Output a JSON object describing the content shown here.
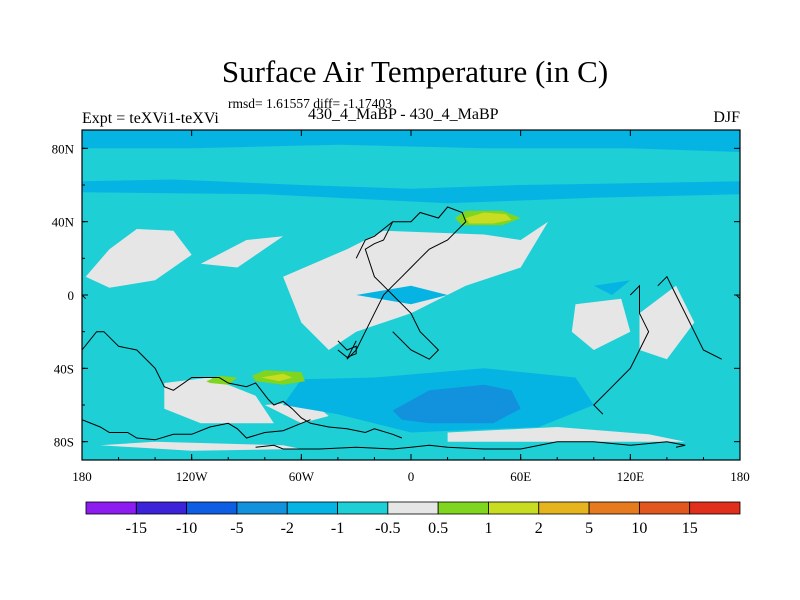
{
  "header": {
    "title": "Surface Air Temperature (in C)",
    "stats": "rmsd= 1.61557 diff= -1.17403",
    "experiment": "Expt = teXVi1-teXVi",
    "runs": "430_4_MaBP - 430_4_MaBP",
    "season": "DJF"
  },
  "chart_data": {
    "type": "heatmap",
    "title": "Surface Air Temperature (in C)",
    "subtitle": "430_4_MaBP - 430_4_MaBP",
    "xlim": [
      -180,
      180
    ],
    "ylim": [
      -90,
      90
    ],
    "x_ticks": [
      {
        "value": -180,
        "label": "180"
      },
      {
        "value": -120,
        "label": "120W"
      },
      {
        "value": -60,
        "label": "60W"
      },
      {
        "value": 0,
        "label": "0"
      },
      {
        "value": 60,
        "label": "60E"
      },
      {
        "value": 120,
        "label": "120E"
      },
      {
        "value": 180,
        "label": "180"
      }
    ],
    "y_ticks": [
      {
        "value": 80,
        "label": "80N"
      },
      {
        "value": 40,
        "label": "40N"
      },
      {
        "value": 0,
        "label": "0"
      },
      {
        "value": -40,
        "label": "40S"
      },
      {
        "value": -80,
        "label": "80S"
      }
    ],
    "colorbar": {
      "labels": [
        "-15",
        "-10",
        "-5",
        "-2",
        "-1",
        "-0.5",
        "0.5",
        "1",
        "2",
        "5",
        "10",
        "15"
      ],
      "colors": [
        "#8c1cf0",
        "#3c22d8",
        "#0d5ee2",
        "#1292dc",
        "#06b4e4",
        "#1ecfd6",
        "#e6e6e6",
        "#7fd51f",
        "#c8dc21",
        "#e6b41f",
        "#e67a1e",
        "#e2571d",
        "#e0301c"
      ]
    },
    "fields": [
      {
        "level": "-1 to -0.5",
        "color": "#1ecfd6",
        "regions": [
          [
            [
              -180,
              30
            ],
            [
              -160,
              35
            ],
            [
              -130,
              40
            ],
            [
              -100,
              30
            ],
            [
              -70,
              25
            ],
            [
              -40,
              20
            ],
            [
              -10,
              20
            ],
            [
              30,
              25
            ],
            [
              80,
              20
            ],
            [
              120,
              15
            ],
            [
              180,
              15
            ],
            [
              180,
              -25
            ],
            [
              150,
              -45
            ],
            [
              120,
              -40
            ],
            [
              100,
              -60
            ],
            [
              30,
              -78
            ],
            [
              -20,
              -70
            ],
            [
              -60,
              -50
            ],
            [
              -100,
              -35
            ],
            [
              -140,
              -20
            ],
            [
              -180,
              -15
            ]
          ],
          [
            [
              -180,
              -40
            ],
            [
              -150,
              -50
            ],
            [
              -110,
              -60
            ],
            [
              -80,
              -70
            ],
            [
              -120,
              -80
            ],
            [
              -180,
              -75
            ]
          ],
          [
            [
              -180,
              73
            ],
            [
              -140,
              75
            ],
            [
              -80,
              78
            ],
            [
              -20,
              75
            ],
            [
              40,
              74
            ],
            [
              100,
              73
            ],
            [
              180,
              74
            ],
            [
              180,
              72
            ],
            [
              -180,
              70
            ]
          ],
          [
            [
              20,
              44
            ],
            [
              60,
              48
            ],
            [
              100,
              42
            ],
            [
              60,
              36
            ],
            [
              20,
              38
            ]
          ]
        ]
      },
      {
        "level": "-0.5 to 0.5",
        "color": "#e6e6e6",
        "regions": [
          [
            [
              -178,
              10
            ],
            [
              -165,
              25
            ],
            [
              -150,
              36
            ],
            [
              -130,
              35
            ],
            [
              -120,
              22
            ],
            [
              -140,
              8
            ],
            [
              -165,
              4
            ]
          ],
          [
            [
              -115,
              17
            ],
            [
              -90,
              30
            ],
            [
              -70,
              32
            ],
            [
              -95,
              15
            ]
          ],
          [
            [
              -70,
              10
            ],
            [
              -35,
              25
            ],
            [
              -15,
              35
            ],
            [
              40,
              33
            ],
            [
              60,
              30
            ],
            [
              75,
              40
            ],
            [
              60,
              15
            ],
            [
              30,
              5
            ],
            [
              0,
              -10
            ],
            [
              -30,
              -20
            ],
            [
              -45,
              -30
            ],
            [
              -60,
              -15
            ]
          ],
          [
            [
              -135,
              -48
            ],
            [
              -110,
              -45
            ],
            [
              -85,
              -55
            ],
            [
              -75,
              -70
            ],
            [
              -115,
              -70
            ],
            [
              -135,
              -62
            ]
          ],
          [
            [
              -80,
              -60
            ],
            [
              -55,
              -58
            ],
            [
              -45,
              -66
            ],
            [
              -60,
              -70
            ]
          ],
          [
            [
              90,
              -5
            ],
            [
              115,
              -2
            ],
            [
              120,
              -20
            ],
            [
              100,
              -30
            ],
            [
              88,
              -20
            ]
          ],
          [
            [
              125,
              -10
            ],
            [
              145,
              5
            ],
            [
              155,
              -15
            ],
            [
              140,
              -35
            ],
            [
              125,
              -30
            ]
          ],
          [
            [
              20,
              -75
            ],
            [
              80,
              -72
            ],
            [
              130,
              -76
            ],
            [
              150,
              -80
            ],
            [
              20,
              -80
            ]
          ],
          [
            [
              -170,
              -82
            ],
            [
              -120,
              -85
            ],
            [
              -60,
              -84
            ],
            [
              -70,
              -82
            ],
            [
              -140,
              -80
            ]
          ]
        ]
      },
      {
        "level": "-2 to -1",
        "color": "#06b4e4",
        "regions": [
          [
            [
              -180,
              90
            ],
            [
              180,
              90
            ],
            [
              180,
              78
            ],
            [
              120,
              80
            ],
            [
              40,
              80
            ],
            [
              -40,
              82
            ],
            [
              -120,
              80
            ],
            [
              -180,
              80
            ]
          ],
          [
            [
              -180,
              62
            ],
            [
              -130,
              63
            ],
            [
              -60,
              60
            ],
            [
              0,
              58
            ],
            [
              60,
              60
            ],
            [
              120,
              61
            ],
            [
              180,
              62
            ],
            [
              180,
              55
            ],
            [
              100,
              53
            ],
            [
              20,
              50
            ],
            [
              -80,
              55
            ],
            [
              -180,
              56
            ]
          ],
          [
            [
              -60,
              -46
            ],
            [
              -20,
              -45
            ],
            [
              40,
              -40
            ],
            [
              90,
              -45
            ],
            [
              100,
              -60
            ],
            [
              70,
              -72
            ],
            [
              0,
              -75
            ],
            [
              -40,
              -65
            ],
            [
              -70,
              -60
            ]
          ],
          [
            [
              -30,
              0
            ],
            [
              0,
              -5
            ],
            [
              20,
              0
            ],
            [
              0,
              5
            ]
          ],
          [
            [
              100,
              5
            ],
            [
              120,
              8
            ],
            [
              110,
              0
            ]
          ]
        ]
      },
      {
        "level": "-5 to -2",
        "color": "#1292dc",
        "regions": [
          [
            [
              -10,
              -63
            ],
            [
              10,
              -52
            ],
            [
              40,
              -49
            ],
            [
              55,
              -52
            ],
            [
              60,
              -62
            ],
            [
              45,
              -70
            ],
            [
              10,
              -70
            ],
            [
              -5,
              -68
            ]
          ]
        ]
      },
      {
        "level": "1 to 2",
        "color": "#7fd51f",
        "regions": [
          [
            [
              -112,
              -47
            ],
            [
              -105,
              -44
            ],
            [
              -95,
              -45
            ],
            [
              -100,
              -49
            ],
            [
              -110,
              -48
            ]
          ],
          [
            [
              -87,
              -44
            ],
            [
              -80,
              -41
            ],
            [
              -60,
              -42
            ],
            [
              -58,
              -47
            ],
            [
              -70,
              -49
            ],
            [
              -85,
              -47
            ]
          ],
          [
            [
              24,
              42
            ],
            [
              30,
              46
            ],
            [
              50,
              46
            ],
            [
              60,
              42
            ],
            [
              50,
              38
            ],
            [
              28,
              38
            ]
          ]
        ]
      },
      {
        "level": "2 to 5",
        "color": "#c8dc21",
        "regions": [
          [
            [
              -82,
              -45
            ],
            [
              -70,
              -43
            ],
            [
              -65,
              -45
            ],
            [
              -72,
              -47
            ]
          ],
          [
            [
              30,
              42
            ],
            [
              40,
              45
            ],
            [
              52,
              44
            ],
            [
              55,
              41
            ],
            [
              45,
              39
            ],
            [
              32,
              39
            ]
          ]
        ]
      }
    ],
    "land_outlines": [
      [
        [
          -180,
          -30
        ],
        [
          -172,
          -20
        ],
        [
          -168,
          -20
        ],
        [
          -160,
          -28
        ],
        [
          -150,
          -30
        ],
        [
          -140,
          -40
        ],
        [
          -135,
          -50
        ],
        [
          -130,
          -52
        ],
        [
          -120,
          -45
        ],
        [
          -105,
          -45
        ],
        [
          -100,
          -48
        ],
        [
          -90,
          -50
        ],
        [
          -85,
          -48
        ],
        [
          -78,
          -57
        ],
        [
          -75,
          -60
        ],
        [
          -70,
          -58
        ],
        [
          -65,
          -62
        ],
        [
          -60,
          -67
        ],
        [
          -55,
          -70
        ],
        [
          -45,
          -72
        ],
        [
          -35,
          -73
        ],
        [
          -25,
          -75
        ],
        [
          -20,
          -73
        ],
        [
          -10,
          -76
        ],
        [
          -5,
          -78
        ]
      ],
      [
        [
          -180,
          -68
        ],
        [
          -170,
          -72
        ],
        [
          -165,
          -75
        ],
        [
          -155,
          -75
        ],
        [
          -150,
          -78
        ],
        [
          -140,
          -79
        ],
        [
          -130,
          -76
        ],
        [
          -120,
          -76
        ],
        [
          -110,
          -72
        ],
        [
          -100,
          -70
        ],
        [
          -95,
          -73
        ],
        [
          -90,
          -78
        ],
        [
          -80,
          -75
        ],
        [
          -70,
          -74
        ],
        [
          -60,
          -70
        ],
        [
          -55,
          -68
        ]
      ],
      [
        [
          -85,
          -83
        ],
        [
          -75,
          -82
        ],
        [
          -70,
          -84
        ],
        [
          -50,
          -84
        ],
        [
          -30,
          -83
        ],
        [
          -10,
          -84
        ],
        [
          0,
          -83
        ],
        [
          10,
          -82
        ],
        [
          20,
          -83
        ],
        [
          40,
          -84
        ],
        [
          60,
          -84
        ],
        [
          80,
          -80
        ],
        [
          100,
          -80
        ],
        [
          120,
          -82
        ],
        [
          140,
          -80
        ],
        [
          150,
          -82
        ],
        [
          145,
          -83
        ]
      ],
      [
        [
          -30,
          20
        ],
        [
          -25,
          30
        ],
        [
          -20,
          32
        ],
        [
          -10,
          40
        ],
        [
          0,
          40
        ],
        [
          5,
          45
        ],
        [
          15,
          42
        ],
        [
          20,
          48
        ],
        [
          28,
          45
        ],
        [
          30,
          40
        ],
        [
          25,
          35
        ],
        [
          20,
          30
        ],
        [
          10,
          25
        ],
        [
          5,
          20
        ],
        [
          0,
          15
        ],
        [
          -5,
          10
        ],
        [
          -10,
          5
        ],
        [
          -15,
          0
        ],
        [
          -20,
          -10
        ],
        [
          -25,
          -20
        ],
        [
          -30,
          -30
        ],
        [
          -35,
          -35
        ],
        [
          -30,
          -25
        ]
      ],
      [
        [
          -10,
          40
        ],
        [
          -15,
          30
        ],
        [
          -20,
          28
        ],
        [
          -25,
          25
        ],
        [
          -20,
          10
        ],
        [
          -15,
          5
        ],
        [
          -10,
          0
        ],
        [
          -5,
          -5
        ],
        [
          0,
          -10
        ],
        [
          5,
          -20
        ],
        [
          10,
          -25
        ],
        [
          15,
          -30
        ],
        [
          10,
          -35
        ],
        [
          0,
          -30
        ],
        [
          -10,
          -20
        ]
      ],
      [
        [
          -40,
          -25
        ],
        [
          -35,
          -30
        ],
        [
          -30,
          -28
        ],
        [
          -30,
          -32
        ],
        [
          -35,
          -34
        ],
        [
          -40,
          -30
        ]
      ],
      [
        [
          120,
          0
        ],
        [
          125,
          5
        ],
        [
          125,
          -10
        ],
        [
          130,
          -20
        ],
        [
          125,
          -30
        ],
        [
          120,
          -40
        ],
        [
          110,
          -50
        ],
        [
          100,
          -60
        ],
        [
          105,
          -65
        ]
      ],
      [
        [
          135,
          5
        ],
        [
          140,
          10
        ],
        [
          145,
          0
        ],
        [
          150,
          -10
        ],
        [
          155,
          -20
        ],
        [
          160,
          -30
        ],
        [
          170,
          -35
        ]
      ],
      [
        [
          -180,
          0
        ],
        [
          -178,
          -2
        ]
      ],
      [
        [
          178,
          0
        ],
        [
          180,
          -2
        ]
      ]
    ]
  }
}
